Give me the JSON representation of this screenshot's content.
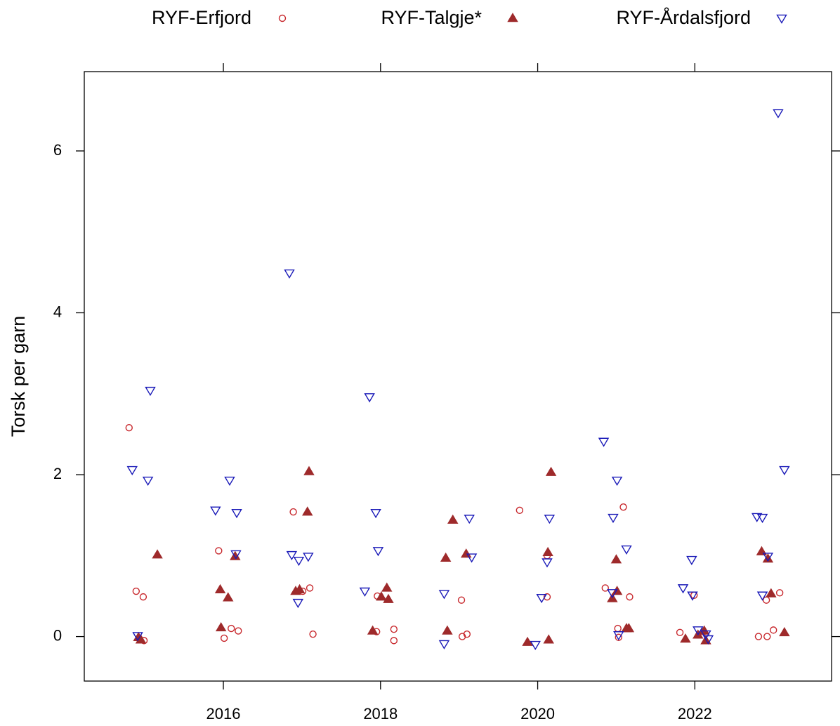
{
  "chart_data": {
    "type": "scatter",
    "ylabel": "Torsk per garn",
    "xlim": [
      2014.23,
      2023.74
    ],
    "ylim": [
      -0.55,
      6.98
    ],
    "xticks": [
      2016,
      2018,
      2020,
      2022
    ],
    "yticks": [
      0,
      2,
      4,
      6
    ],
    "series": [
      {
        "name": "RYF-Erfjord",
        "color": "#c8282d",
        "marker": "circle",
        "filled": false,
        "x": [
          2014.8,
          2014.89,
          2014.98,
          2014.99,
          2015.94,
          2016.01,
          2016.1,
          2016.19,
          2016.89,
          2017.01,
          2017.1,
          2017.14,
          2017.96,
          2017.95,
          2018.17,
          2018.17,
          2019.03,
          2019.04,
          2019.1,
          2019.77,
          2020.12,
          2020.12,
          2020.86,
          2021.02,
          2021.03,
          2021.09,
          2021.17,
          2021.81,
          2021.99,
          2022.11,
          2022.81,
          2022.91,
          2022.92,
          2023.0,
          2023.08
        ],
        "values": [
          2.58,
          0.56,
          0.49,
          -0.05,
          1.06,
          -0.02,
          0.1,
          0.07,
          1.54,
          0.56,
          0.6,
          0.03,
          0.5,
          0.06,
          0.09,
          -0.05,
          0.45,
          0.0,
          0.03,
          1.56,
          0.49,
          1.0,
          0.6,
          0.1,
          -0.01,
          1.6,
          0.49,
          0.05,
          0.51,
          0.06,
          0.0,
          0.45,
          0.0,
          0.08,
          0.54
        ]
      },
      {
        "name": "RYF-Talgje*",
        "color": "#9e2a2b",
        "marker": "triangle",
        "filled": true,
        "x": [
          2014.92,
          2014.95,
          2015.16,
          2015.96,
          2015.97,
          2016.06,
          2016.15,
          2016.92,
          2016.97,
          2017.07,
          2017.09,
          2017.9,
          2018.01,
          2018.08,
          2018.1,
          2018.83,
          2018.85,
          2018.92,
          2019.09,
          2019.87,
          2020.14,
          2020.13,
          2020.17,
          2020.95,
          2021.0,
          2021.01,
          2021.13,
          2021.16,
          2021.88,
          2022.04,
          2022.12,
          2022.14,
          2022.85,
          2022.93,
          2022.97,
          2023.14
        ],
        "values": [
          -0.01,
          -0.04,
          1.01,
          0.58,
          0.11,
          0.48,
          0.99,
          0.56,
          0.58,
          1.54,
          2.04,
          0.07,
          0.49,
          0.6,
          0.46,
          0.97,
          0.07,
          1.44,
          1.02,
          -0.07,
          -0.04,
          1.04,
          2.03,
          0.47,
          0.95,
          0.56,
          0.1,
          0.1,
          -0.03,
          0.02,
          0.07,
          -0.05,
          1.05,
          0.96,
          0.53,
          0.05
        ]
      },
      {
        "name": "RYF-Årdalsfjord",
        "color": "#1a1ab8",
        "marker": "triangle-down",
        "filled": false,
        "x": [
          2014.84,
          2014.91,
          2015.04,
          2015.07,
          2015.9,
          2016.08,
          2016.16,
          2016.17,
          2016.84,
          2016.87,
          2016.95,
          2016.96,
          2017.08,
          2017.8,
          2017.86,
          2017.94,
          2017.97,
          2018.81,
          2018.81,
          2019.13,
          2019.16,
          2019.97,
          2020.05,
          2020.12,
          2020.15,
          2020.84,
          2020.95,
          2020.96,
          2021.01,
          2021.03,
          2021.13,
          2021.85,
          2021.96,
          2021.97,
          2022.04,
          2022.14,
          2022.17,
          2022.79,
          2022.86,
          2022.86,
          2022.93,
          2023.06,
          2023.14
        ],
        "values": [
          2.06,
          0.01,
          1.93,
          3.04,
          1.56,
          1.93,
          1.02,
          1.53,
          4.49,
          1.01,
          0.42,
          0.94,
          0.99,
          0.56,
          2.96,
          1.53,
          1.06,
          0.53,
          -0.09,
          1.46,
          0.98,
          -0.1,
          0.48,
          0.92,
          1.46,
          2.41,
          0.54,
          1.47,
          1.93,
          0.02,
          1.08,
          0.6,
          0.95,
          0.51,
          0.08,
          0.03,
          -0.03,
          1.48,
          1.47,
          0.51,
          0.99,
          6.47,
          2.06
        ]
      }
    ]
  }
}
